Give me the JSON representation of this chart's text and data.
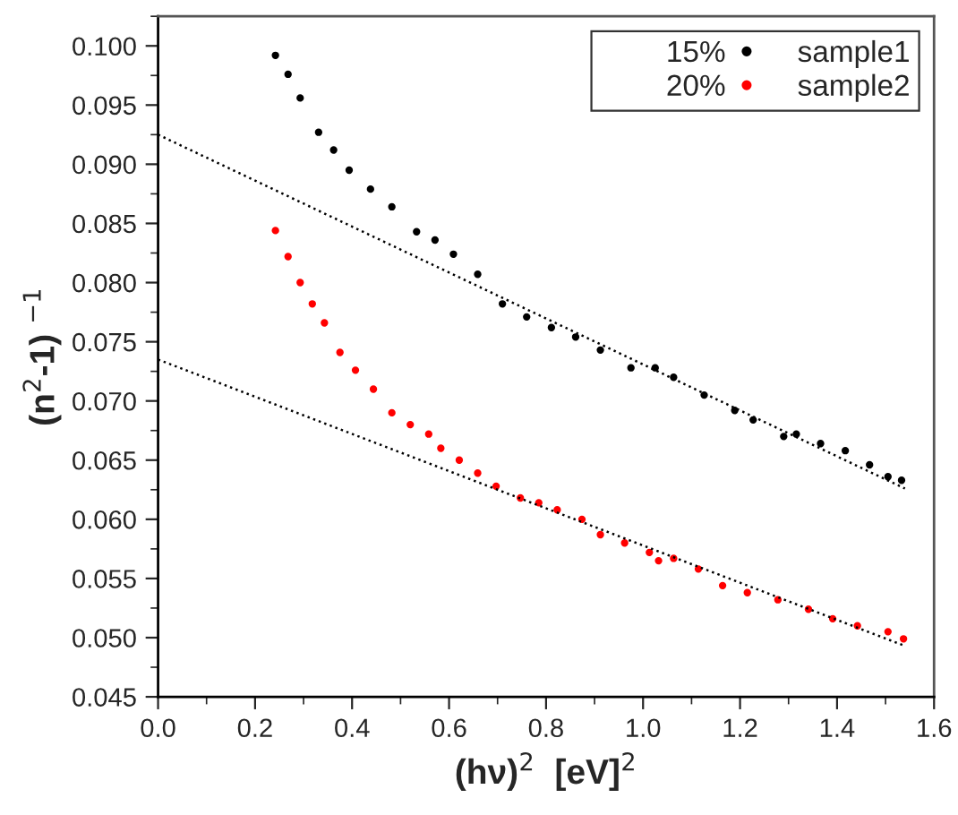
{
  "chart_data": {
    "type": "scatter",
    "xlabel": "(hν)$^{2}$  [eV]$^{2}$",
    "ylabel": "(n$^{2}$-1) $^{−1}$",
    "annotations": [
      "15%",
      "20%"
    ],
    "xlim": [
      0.0,
      1.6
    ],
    "xticks": [
      {
        "value": 0,
        "label": "0.0"
      },
      0.2,
      0.4,
      0.6,
      0.8,
      {
        "value": 1,
        "label": "1.0"
      },
      1.2,
      1.4,
      1.6
    ],
    "ylim": [
      0.045,
      0.1025
    ],
    "yticks": [
      {
        "value": 0.045,
        "label": "0.045"
      },
      {
        "value": 0.05,
        "label": "0.050"
      },
      {
        "value": 0.055,
        "label": "0.055"
      },
      {
        "value": 0.06,
        "label": "0.060"
      },
      {
        "value": 0.065,
        "label": "0.065"
      },
      {
        "value": 0.07,
        "label": "0.070"
      },
      {
        "value": 0.075,
        "label": "0.075"
      },
      {
        "value": 0.08,
        "label": "0.080"
      },
      {
        "value": 0.085,
        "label": "0.085"
      },
      {
        "value": 0.09,
        "label": "0.090"
      },
      {
        "value": 0.095,
        "label": "0.095"
      },
      {
        "value": 0.1,
        "label": "0.100"
      }
    ],
    "legend": "top right",
    "marker": "circle",
    "grid": false,
    "series": [
      {
        "name": "sample1",
        "color": "#000000",
        "x": [
          0.242,
          0.268,
          0.293,
          0.331,
          0.362,
          0.394,
          0.438,
          0.482,
          0.533,
          0.571,
          0.609,
          0.659,
          0.71,
          0.76,
          0.811,
          0.861,
          0.912,
          0.975,
          1.025,
          1.063,
          1.126,
          1.189,
          1.227,
          1.29,
          1.316,
          1.366,
          1.417,
          1.467,
          1.505,
          1.533
        ],
        "values": [
          0.0992,
          0.0976,
          0.0956,
          0.0927,
          0.0912,
          0.0895,
          0.0879,
          0.0864,
          0.0843,
          0.0836,
          0.0824,
          0.0807,
          0.0782,
          0.0771,
          0.0762,
          0.0754,
          0.0743,
          0.0728,
          0.0728,
          0.072,
          0.0705,
          0.0692,
          0.0684,
          0.067,
          0.0672,
          0.0664,
          0.0658,
          0.0646,
          0.0636,
          0.0633
        ]
      },
      {
        "name": "sample2",
        "color": "#ff0000",
        "x": [
          0.242,
          0.268,
          0.293,
          0.318,
          0.343,
          0.375,
          0.407,
          0.444,
          0.482,
          0.52,
          0.558,
          0.583,
          0.621,
          0.659,
          0.697,
          0.747,
          0.785,
          0.823,
          0.874,
          0.912,
          0.962,
          1.013,
          1.032,
          1.063,
          1.114,
          1.164,
          1.215,
          1.278,
          1.341,
          1.391,
          1.442,
          1.505,
          1.537
        ],
        "values": [
          0.0844,
          0.0822,
          0.08,
          0.0782,
          0.0766,
          0.0741,
          0.0726,
          0.071,
          0.069,
          0.068,
          0.0672,
          0.066,
          0.065,
          0.0639,
          0.0628,
          0.0618,
          0.0614,
          0.0608,
          0.06,
          0.0587,
          0.058,
          0.0572,
          0.0565,
          0.0567,
          0.0558,
          0.0544,
          0.0538,
          0.0532,
          0.0524,
          0.0516,
          0.051,
          0.0505,
          0.0499
        ]
      },
      {
        "type": "line",
        "color": "#000000",
        "line_style": "dotted",
        "marker": "none",
        "x": [
          0.0,
          1.54
        ],
        "values": [
          0.0925,
          0.0626
        ]
      },
      {
        "type": "line",
        "color": "#000000",
        "line_style": "dotted",
        "marker": "none",
        "x": [
          0.0,
          1.54
        ],
        "values": [
          0.0735,
          0.0493
        ]
      }
    ]
  }
}
